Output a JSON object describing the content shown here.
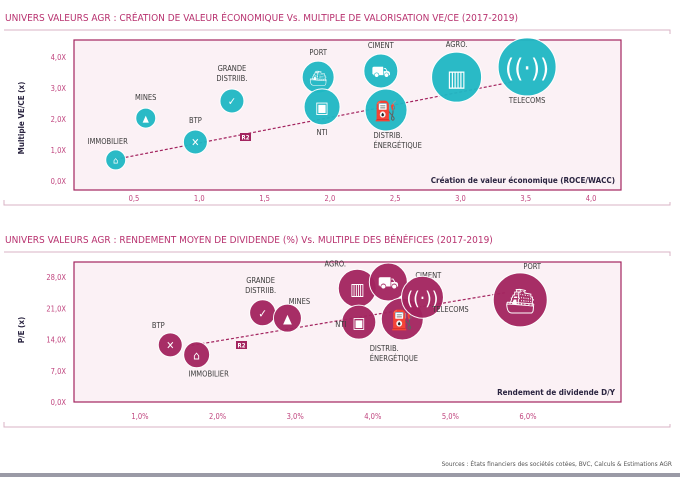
{
  "source": "Sources : États financiers des sociétés cotées, BVC, Calculs & Estimations AGR",
  "trend_badge": "R2",
  "chart_data": [
    {
      "type": "scatter",
      "title": "UNIVERS VALEURS AGR : CRÉATION DE VALEUR ÉCONOMIQUE Vs. MULTIPLE DE VALORISATION VE/CE (2017-2019)",
      "xlabel": "Création de valeur économique (ROCE/WACC)",
      "ylabel": "Multiple VE/CE (x)",
      "xlim": [
        0.0,
        4.2
      ],
      "ylim": [
        0,
        4.2
      ],
      "xticks": [
        "0,5",
        "1,0",
        "1,5",
        "2,0",
        "2,5",
        "3,0",
        "3,5",
        "4,0"
      ],
      "xtick_values": [
        0.5,
        1.0,
        1.5,
        2.0,
        2.5,
        3.0,
        3.5,
        4.0
      ],
      "yticks": [
        "0,0X",
        "1,0X",
        "2,0X",
        "3,0X",
        "4,0X"
      ],
      "ytick_values": [
        0,
        1,
        2,
        3,
        4
      ],
      "bubble_color": "#1fb8c4",
      "trendline": [
        [
          0.36,
          0.7
        ],
        [
          3.4,
          3.2
        ]
      ],
      "points": [
        {
          "label": "IMMOBILIER",
          "x": 0.36,
          "y": 0.68,
          "size": 1.0,
          "icon": "house-icon"
        },
        {
          "label": "MINES",
          "x": 0.59,
          "y": 2.03,
          "size": 1.0,
          "icon": "mine-helmet-icon"
        },
        {
          "label": "BTP",
          "x": 0.97,
          "y": 1.26,
          "size": 1.2,
          "icon": "tools-icon"
        },
        {
          "label": "GRANDE DISTRIIB.",
          "x": 1.25,
          "y": 2.58,
          "size": 1.2,
          "icon": "cart-icon"
        },
        {
          "label": "PORT",
          "x": 1.91,
          "y": 3.35,
          "size": 1.6,
          "icon": "ship-icon"
        },
        {
          "label": "NTI",
          "x": 1.94,
          "y": 2.39,
          "size": 1.8,
          "icon": "computer-icon"
        },
        {
          "label": "CIMENT",
          "x": 2.39,
          "y": 3.55,
          "size": 1.7,
          "icon": "cement-truck-icon"
        },
        {
          "label": "DISTRIB. ÉNERGÉTIQUE",
          "x": 2.43,
          "y": 2.29,
          "size": 2.1,
          "icon": "fuel-pump-icon"
        },
        {
          "label": "AGRO.",
          "x": 2.97,
          "y": 3.35,
          "size": 2.5,
          "icon": "factory-icon"
        },
        {
          "label": "TELECOMS",
          "x": 3.51,
          "y": 3.68,
          "size": 2.9,
          "icon": "antenna-icon"
        }
      ]
    },
    {
      "type": "scatter",
      "title": "UNIVERS VALEURS AGR : RENDEMENT MOYEN DE DIVIDENDE (%) Vs. MULTIPLE DES BÉNÉFICES (2017-2019)",
      "xlabel": "Rendement de dividende D/Y",
      "ylabel": "P/E (x)",
      "xlim": [
        0.0,
        6.8
      ],
      "ylim": [
        0,
        31
      ],
      "xticks": [
        "1,0%",
        "2,0%",
        "3,0%",
        "4,0%",
        "5,0%",
        "6,0%"
      ],
      "xtick_values": [
        1,
        2,
        3,
        4,
        5,
        6
      ],
      "yticks": [
        "0,0X",
        "7,0X",
        "14,0X",
        "21,0X",
        "28,0X"
      ],
      "ytick_values": [
        0,
        7,
        14,
        21,
        28
      ],
      "bubble_color": "#a3245f",
      "trendline": [
        [
          1.6,
          12.5
        ],
        [
          5.7,
          24.5
        ]
      ],
      "points": [
        {
          "label": "BTP",
          "x": 1.39,
          "y": 12.8,
          "size": 1.2,
          "icon": "tools-icon"
        },
        {
          "label": "IMMOBILIER",
          "x": 1.73,
          "y": 10.6,
          "size": 1.3,
          "icon": "house-icon"
        },
        {
          "label": "GRANDE DISTRIIB.",
          "x": 2.58,
          "y": 20.0,
          "size": 1.3,
          "icon": "cart-icon"
        },
        {
          "label": "MINES",
          "x": 2.9,
          "y": 18.8,
          "size": 1.4,
          "icon": "mine-helmet-icon"
        },
        {
          "label": "AGRO.",
          "x": 3.8,
          "y": 25.5,
          "size": 1.9,
          "icon": "factory-icon"
        },
        {
          "label": "NTI",
          "x": 3.82,
          "y": 17.9,
          "size": 1.7,
          "icon": "computer-icon"
        },
        {
          "label": "CIMENT",
          "x": 4.2,
          "y": 26.9,
          "size": 1.9,
          "icon": "cement-truck-icon"
        },
        {
          "label": "DISTRIB. ÉNERGÉTIQUE",
          "x": 4.38,
          "y": 18.6,
          "size": 2.1,
          "icon": "fuel-pump-icon"
        },
        {
          "label": "TELECOMS",
          "x": 4.64,
          "y": 23.5,
          "size": 2.1,
          "icon": "antenna-icon"
        },
        {
          "label": "PORT",
          "x": 5.9,
          "y": 22.9,
          "size": 2.7,
          "icon": "ship-icon"
        }
      ]
    }
  ]
}
